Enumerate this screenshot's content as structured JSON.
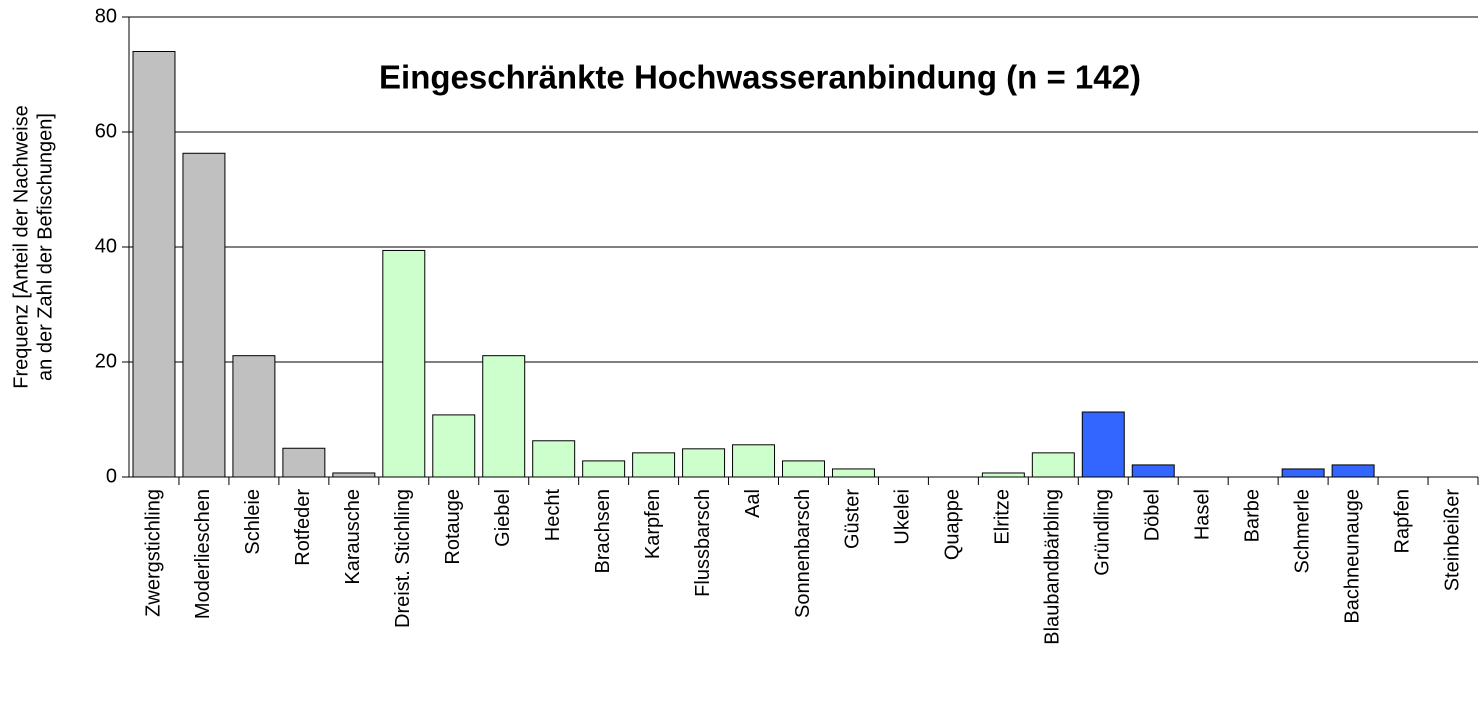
{
  "chart_data": {
    "type": "bar",
    "title": "Eingeschränkte Hochwasseranbindung (n = 142)",
    "y_label": [
      "Frequenz [Anteil der Nachweise",
      "an der Zahl der Befischungen]"
    ],
    "categories": [
      "Zwergstichling",
      "Moderlieschen",
      "Schleie",
      "Rotfeder",
      "Karausche",
      "Dreist. Stichling",
      "Rotauge",
      "Giebel",
      "Hecht",
      "Brachsen",
      "Karpfen",
      "Flussbarsch",
      "Aal",
      "Sonnenbarsch",
      "Güster",
      "Ukelei",
      "Quappe",
      "Elritze",
      "Blaubandbärbling",
      "Gründling",
      "Döbel",
      "Hasel",
      "Barbe",
      "Schmerle",
      "Bachneunauge",
      "Rapfen",
      "Steinbeißer"
    ],
    "values": [
      74,
      56.3,
      21.1,
      5.0,
      0.7,
      39.4,
      10.8,
      21.1,
      6.3,
      2.8,
      4.2,
      4.9,
      5.6,
      2.8,
      1.4,
      0,
      0,
      0.7,
      4.2,
      11.3,
      2.1,
      0,
      0,
      1.4,
      2.1,
      0,
      0
    ],
    "colors": [
      "#c0c0c0",
      "#c0c0c0",
      "#c0c0c0",
      "#c0c0c0",
      "#c0c0c0",
      "#ccffcc",
      "#ccffcc",
      "#ccffcc",
      "#ccffcc",
      "#ccffcc",
      "#ccffcc",
      "#ccffcc",
      "#ccffcc",
      "#ccffcc",
      "#ccffcc",
      "#ccffcc",
      "#ccffcc",
      "#ccffcc",
      "#ccffcc",
      "#3366ff",
      "#3366ff",
      "#3366ff",
      "#3366ff",
      "#3366ff",
      "#3366ff",
      "#3366ff",
      "#3366ff"
    ],
    "ylim": [
      0,
      80
    ],
    "yticks": [
      0,
      20,
      40,
      60,
      80
    ],
    "grid": true
  }
}
